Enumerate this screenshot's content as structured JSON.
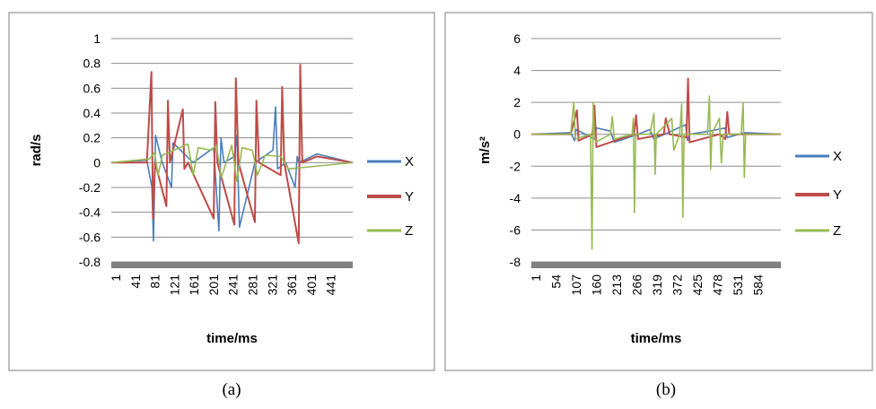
{
  "captions": [
    "(a)",
    "(b)"
  ],
  "colors": {
    "X": "#4a7ebb",
    "Y": "#be4b48",
    "Z": "#98b954",
    "grid": "#8c8c8c",
    "axisband": "#808080"
  },
  "chart_data": [
    {
      "type": "line",
      "title": "",
      "xlabel": "time/ms",
      "ylabel": "rad/s",
      "ylim": [
        -0.8,
        1
      ],
      "yticks": [
        "1",
        "0.8",
        "0.6",
        "0.4",
        "0.2",
        "0",
        "-0.2",
        "-0.4",
        "-0.6",
        "-0.8"
      ],
      "xlim": [
        1,
        470
      ],
      "xticks": [
        "1",
        "41",
        "81",
        "121",
        "161",
        "201",
        "241",
        "281",
        "321",
        "361",
        "401",
        "441"
      ],
      "grid": true,
      "legend": "right",
      "series": [
        {
          "name": "X",
          "x": [
            1,
            70,
            80,
            83,
            87,
            100,
            118,
            121,
            160,
            200,
            210,
            214,
            220,
            240,
            245,
            250,
            280,
            315,
            320,
            324,
            340,
            358,
            362,
            366,
            400,
            470
          ],
          "y": [
            0,
            0.02,
            -0.2,
            -0.63,
            0.22,
            0,
            -0.2,
            0.16,
            0,
            0.12,
            -0.55,
            0.2,
            0,
            0.05,
            0.22,
            -0.52,
            0,
            0.1,
            0.45,
            -0.05,
            0,
            -0.2,
            0.05,
            0,
            0.07,
            0
          ]
        },
        {
          "name": "Y",
          "x": [
            1,
            70,
            79,
            82,
            86,
            108,
            111,
            115,
            140,
            143,
            150,
            200,
            203,
            207,
            240,
            243,
            248,
            280,
            283,
            288,
            330,
            333,
            337,
            365,
            368,
            372,
            400,
            470
          ],
          "y": [
            0,
            0,
            0.73,
            -0.45,
            0,
            -0.35,
            0.5,
            0,
            0.43,
            -0.05,
            0,
            -0.45,
            0.49,
            0,
            -0.5,
            0.68,
            0,
            -0.48,
            0.5,
            0,
            -0.1,
            0.61,
            0,
            -0.65,
            0.79,
            0,
            0.05,
            0
          ]
        },
        {
          "name": "Z",
          "x": [
            1,
            75,
            85,
            92,
            100,
            150,
            160,
            170,
            195,
            205,
            215,
            235,
            245,
            255,
            275,
            285,
            300,
            330,
            345,
            470
          ],
          "y": [
            0,
            0.03,
            0.08,
            -0.1,
            0.06,
            0.15,
            -0.1,
            0.12,
            0.1,
            0.14,
            -0.12,
            0.14,
            -0.15,
            0.12,
            0.1,
            -0.1,
            0.06,
            0.05,
            -0.05,
            0
          ]
        }
      ]
    },
    {
      "type": "line",
      "title": "",
      "xlabel": "time/ms",
      "ylabel": "m/s²",
      "ylim": [
        -8,
        6
      ],
      "yticks": [
        "6",
        "4",
        "2",
        "0",
        "-2",
        "-4",
        "-6",
        "-8"
      ],
      "xlim": [
        1,
        630
      ],
      "xticks": [
        "1",
        "54",
        "107",
        "160",
        "213",
        "266",
        "319",
        "372",
        "425",
        "478",
        "531",
        "584"
      ],
      "grid": true,
      "legend": "right",
      "series": [
        {
          "name": "X",
          "x": [
            1,
            100,
            110,
            114,
            160,
            165,
            200,
            210,
            270,
            300,
            310,
            390,
            395,
            400,
            450,
            490,
            495,
            540,
            630
          ],
          "y": [
            0,
            0.1,
            -0.4,
            0.3,
            -0.3,
            0.4,
            0.2,
            -0.5,
            0,
            0.3,
            -0.3,
            0.6,
            -0.4,
            0,
            0.2,
            0.4,
            -0.2,
            0.1,
            0
          ]
        },
        {
          "name": "Y",
          "x": [
            1,
            100,
            116,
            120,
            155,
            160,
            165,
            260,
            265,
            270,
            335,
            340,
            350,
            392,
            396,
            400,
            475,
            490,
            495,
            500,
            630
          ],
          "y": [
            0,
            0,
            1.5,
            -0.4,
            0,
            1.8,
            -0.8,
            0,
            1.2,
            -0.3,
            0,
            1,
            0,
            -0.2,
            3.5,
            -0.5,
            0,
            -0.3,
            1.4,
            0,
            0
          ]
        },
        {
          "name": "Z",
          "x": [
            1,
            100,
            108,
            112,
            150,
            154,
            157,
            160,
            163,
            200,
            205,
            210,
            255,
            258,
            261,
            264,
            300,
            310,
            313,
            316,
            355,
            360,
            375,
            380,
            383,
            386,
            445,
            450,
            453,
            456,
            475,
            480,
            485,
            530,
            535,
            538,
            541,
            630
          ],
          "y": [
            0,
            0,
            2,
            -0.3,
            0,
            -7.2,
            2,
            0,
            -0.5,
            0,
            1.1,
            -0.3,
            0,
            1,
            -4.9,
            0,
            0,
            1.3,
            -2.5,
            0,
            1,
            -1,
            0,
            1.9,
            -5.2,
            0,
            0,
            2.4,
            -2.2,
            0,
            1,
            -1.8,
            0,
            0,
            2,
            -2.7,
            0,
            0
          ]
        }
      ]
    }
  ]
}
